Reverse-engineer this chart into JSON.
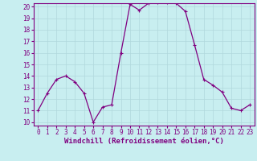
{
  "x": [
    0,
    1,
    2,
    3,
    4,
    5,
    6,
    7,
    8,
    9,
    10,
    11,
    12,
    13,
    14,
    15,
    16,
    17,
    18,
    19,
    20,
    21,
    22,
    23
  ],
  "y": [
    11.0,
    12.5,
    13.7,
    14.0,
    13.5,
    12.5,
    10.0,
    11.3,
    11.5,
    16.0,
    20.2,
    19.7,
    20.3,
    20.4,
    20.4,
    20.3,
    19.6,
    16.7,
    13.7,
    13.2,
    12.6,
    11.2,
    11.0,
    11.5
  ],
  "line_color": "#800080",
  "marker": "+",
  "marker_size": 3,
  "marker_linewidth": 0.8,
  "linewidth": 0.9,
  "background_color": "#c8eef0",
  "grid_color": "#b0d8dc",
  "xlabel": "Windchill (Refroidissement éolien,°C)",
  "xlabel_fontsize": 6.5,
  "ylim": [
    10,
    20
  ],
  "xlim": [
    -0.5,
    23.5
  ],
  "yticks": [
    10,
    11,
    12,
    13,
    14,
    15,
    16,
    17,
    18,
    19,
    20
  ],
  "xticks": [
    0,
    1,
    2,
    3,
    4,
    5,
    6,
    7,
    8,
    9,
    10,
    11,
    12,
    13,
    14,
    15,
    16,
    17,
    18,
    19,
    20,
    21,
    22,
    23
  ],
  "tick_fontsize": 5.5
}
